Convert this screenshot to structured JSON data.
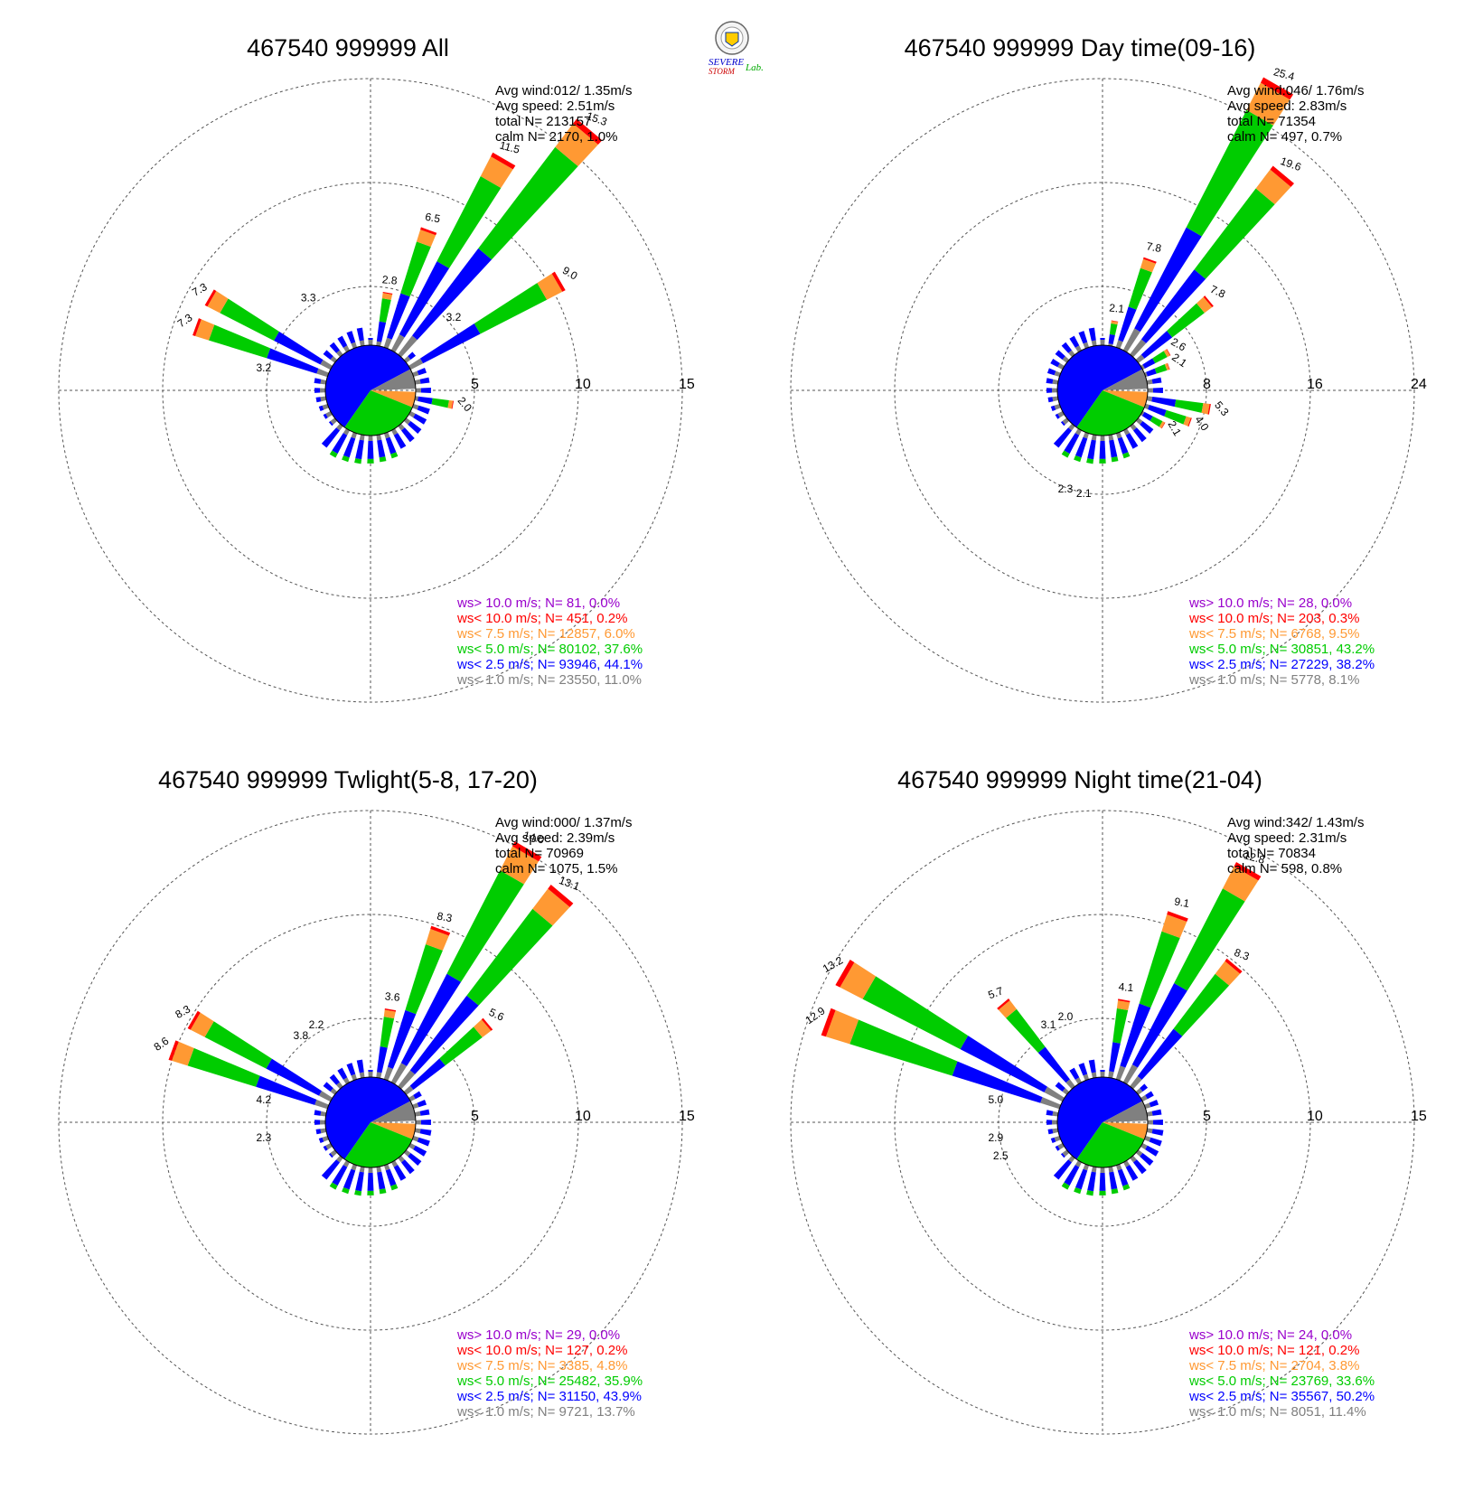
{
  "logo": {
    "text_top": "SEVERE",
    "text_bottom": "STORM",
    "text_right": "Lab."
  },
  "legend_classes": [
    {
      "key": "gt10",
      "label": "ws> 10.0 m/s; N=",
      "color": "#9900cc"
    },
    {
      "key": "lt10",
      "label": "ws< 10.0 m/s; N=",
      "color": "#ff0000"
    },
    {
      "key": "lt7_5",
      "label": "ws<  7.5 m/s; N=",
      "color": "#ff9933"
    },
    {
      "key": "lt5",
      "label": "ws<  5.0 m/s; N=",
      "color": "#00cc00"
    },
    {
      "key": "lt2_5",
      "label": "ws<  2.5 m/s; N=",
      "color": "#0000ff"
    },
    {
      "key": "lt1",
      "label": "ws<  1.0 m/s; N=",
      "color": "#808080"
    }
  ],
  "chart_data": [
    {
      "type": "windrose",
      "title": "467540 999999 All",
      "stats": {
        "avg_wind": "Avg wind:012/ 1.35m/s",
        "avg_speed": "Avg speed: 2.51m/s",
        "total": "total N=     213157",
        "calm": "calm N=   2170,   1.0%"
      },
      "ring_labels": [
        "5",
        "10",
        "15"
      ],
      "rmax": 15,
      "direction_deg": [
        10,
        20,
        30,
        40,
        60,
        100,
        290,
        300
      ],
      "percent": [
        2.8,
        6.5,
        11.5,
        15.3,
        9.0,
        2.0,
        7.3,
        7.3
      ],
      "bar_labels": [
        "2.8",
        "6.5",
        "11.5",
        "15.3",
        "9.0",
        "2.0",
        "7.3",
        "7.3"
      ],
      "extra_labels": [
        {
          "deg": 50,
          "text": "3.2"
        },
        {
          "deg": 325,
          "text": "3.3"
        },
        {
          "deg": 280,
          "text": "3.2"
        }
      ],
      "legend": [
        {
          "n": "81",
          "pct": "0.0%"
        },
        {
          "n": "451",
          "pct": "0.2%"
        },
        {
          "n": "12857",
          "pct": "6.0%"
        },
        {
          "n": "80102",
          "pct": "37.6%"
        },
        {
          "n": "93946",
          "pct": "44.1%"
        },
        {
          "n": "23550",
          "pct": "11.0%"
        }
      ]
    },
    {
      "type": "windrose",
      "title": "467540 999999 Day time(09-16)",
      "stats": {
        "avg_wind": "Avg wind:046/ 1.76m/s",
        "avg_speed": "Avg speed: 2.83m/s",
        "total": "total N=      71354",
        "calm": "calm N=    497,   0.7%"
      },
      "ring_labels": [
        "8",
        "16",
        "24"
      ],
      "rmax": 24,
      "direction_deg": [
        10,
        20,
        30,
        40,
        50,
        60,
        70,
        100,
        110,
        120
      ],
      "percent": [
        2.1,
        7.8,
        25.4,
        19.6,
        7.8,
        2.6,
        2.1,
        5.3,
        4.0,
        2.1
      ],
      "bar_labels": [
        "2.1",
        "7.8",
        "25.4",
        "19.6",
        "7.8",
        "2.6",
        "2.1",
        "5.3",
        "4.0",
        "2.1"
      ],
      "extra_labels": [
        {
          "deg": 190,
          "text": "2.1"
        },
        {
          "deg": 200,
          "text": "2.3"
        }
      ],
      "legend": [
        {
          "n": "28",
          "pct": "0.0%"
        },
        {
          "n": "203",
          "pct": "0.3%"
        },
        {
          "n": "6768",
          "pct": "9.5%"
        },
        {
          "n": "30851",
          "pct": "43.2%"
        },
        {
          "n": "27229",
          "pct": "38.2%"
        },
        {
          "n": "5778",
          "pct": "8.1%"
        }
      ]
    },
    {
      "type": "windrose",
      "title": "467540 999999 Twlight(5-8, 17-20)",
      "stats": {
        "avg_wind": "Avg wind:000/ 1.37m/s",
        "avg_speed": "Avg speed: 2.39m/s",
        "total": "total N=      70969",
        "calm": "calm N=   1075,   1.5%"
      },
      "ring_labels": [
        "5",
        "10",
        "15"
      ],
      "rmax": 15,
      "direction_deg": [
        10,
        20,
        30,
        40,
        50,
        290,
        300
      ],
      "percent": [
        3.6,
        8.3,
        14.0,
        13.1,
        5.6,
        8.6,
        8.3
      ],
      "bar_labels": [
        "3.6",
        "8.3",
        "14.0",
        "13.1",
        "5.6",
        "8.6",
        "8.3"
      ],
      "extra_labels": [
        {
          "deg": 320,
          "text": "3.8"
        },
        {
          "deg": 330,
          "text": "2.2"
        },
        {
          "deg": 280,
          "text": "4.2"
        },
        {
          "deg": 260,
          "text": "2.3"
        }
      ],
      "legend": [
        {
          "n": "29",
          "pct": "0.0%"
        },
        {
          "n": "127",
          "pct": "0.2%"
        },
        {
          "n": "3385",
          "pct": "4.8%"
        },
        {
          "n": "25482",
          "pct": "35.9%"
        },
        {
          "n": "31150",
          "pct": "43.9%"
        },
        {
          "n": "9721",
          "pct": "13.7%"
        }
      ]
    },
    {
      "type": "windrose",
      "title": "467540 999999 Night time(21-04)",
      "stats": {
        "avg_wind": "Avg wind:342/ 1.43m/s",
        "avg_speed": "Avg speed: 2.31m/s",
        "total": "total N=      70834",
        "calm": "calm N=    598,   0.8%"
      },
      "ring_labels": [
        "5",
        "10",
        "15"
      ],
      "rmax": 15,
      "direction_deg": [
        10,
        20,
        30,
        40,
        290,
        300,
        320
      ],
      "percent": [
        4.1,
        9.1,
        12.8,
        8.3,
        12.9,
        13.2,
        5.7
      ],
      "bar_labels": [
        "4.1",
        "9.1",
        "12.8",
        "8.3",
        "12.9",
        "13.2",
        "5.7"
      ],
      "extra_labels": [
        {
          "deg": 330,
          "text": "3.1"
        },
        {
          "deg": 340,
          "text": "2.0"
        },
        {
          "deg": 280,
          "text": "5.0"
        },
        {
          "deg": 260,
          "text": "2.9"
        },
        {
          "deg": 250,
          "text": "2.5"
        }
      ],
      "legend": [
        {
          "n": "24",
          "pct": "0.0%"
        },
        {
          "n": "121",
          "pct": "0.2%"
        },
        {
          "n": "2704",
          "pct": "3.8%"
        },
        {
          "n": "23769",
          "pct": "33.6%"
        },
        {
          "n": "35567",
          "pct": "50.2%"
        },
        {
          "n": "8051",
          "pct": "11.4%"
        }
      ]
    }
  ]
}
